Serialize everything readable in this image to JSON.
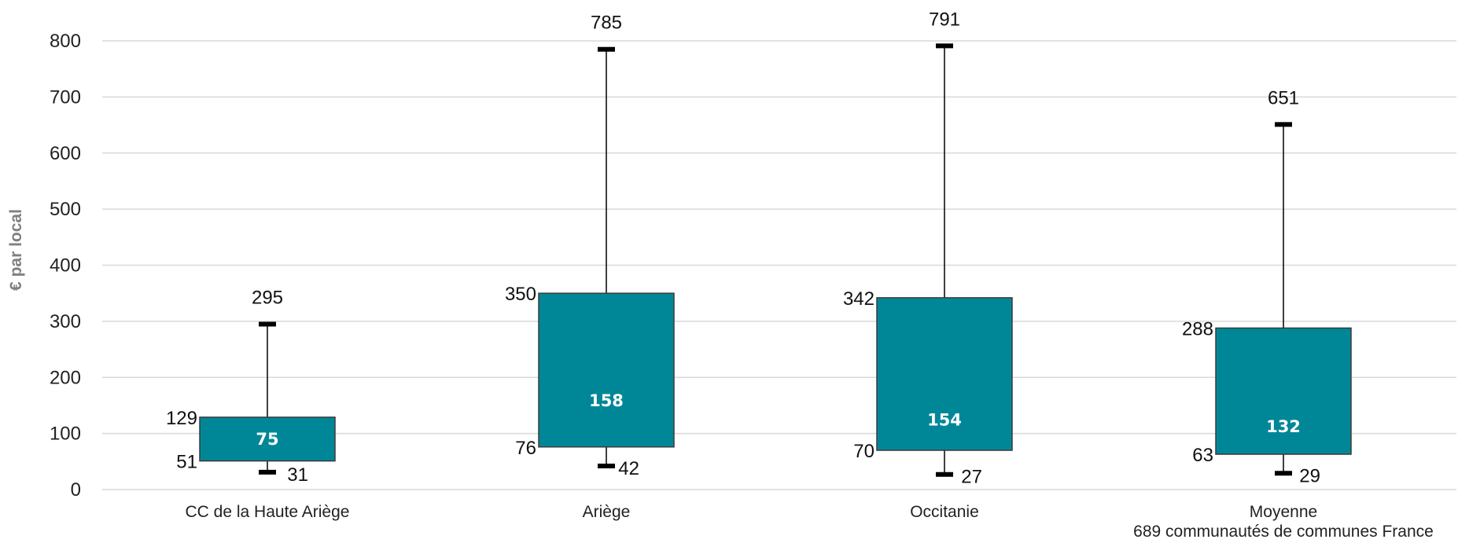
{
  "chart_data": {
    "type": "boxplot",
    "title": "",
    "xlabel": "",
    "ylabel": "€ par local",
    "ylim": [
      0,
      800
    ],
    "yticks": [
      0,
      100,
      200,
      300,
      400,
      500,
      600,
      700,
      800
    ],
    "grid": true,
    "colors": {
      "box": "#008797",
      "box_border": "#3a3a3a",
      "grid": "#d9d9d9",
      "whisker_cap": "#000000"
    },
    "categories": [
      {
        "label": [
          "CC de la Haute Ariège"
        ],
        "min": 31,
        "q1": 51,
        "median": 75,
        "q3": 129,
        "max": 295
      },
      {
        "label": [
          "Ariège"
        ],
        "min": 42,
        "q1": 76,
        "median": 158,
        "q3": 350,
        "max": 785
      },
      {
        "label": [
          "Occitanie"
        ],
        "min": 27,
        "q1": 70,
        "median": 154,
        "q3": 342,
        "max": 791
      },
      {
        "label": [
          "Moyenne",
          "689 communautés de communes France"
        ],
        "min": 29,
        "q1": 63,
        "median": 132,
        "q3": 288,
        "max": 651
      }
    ]
  }
}
